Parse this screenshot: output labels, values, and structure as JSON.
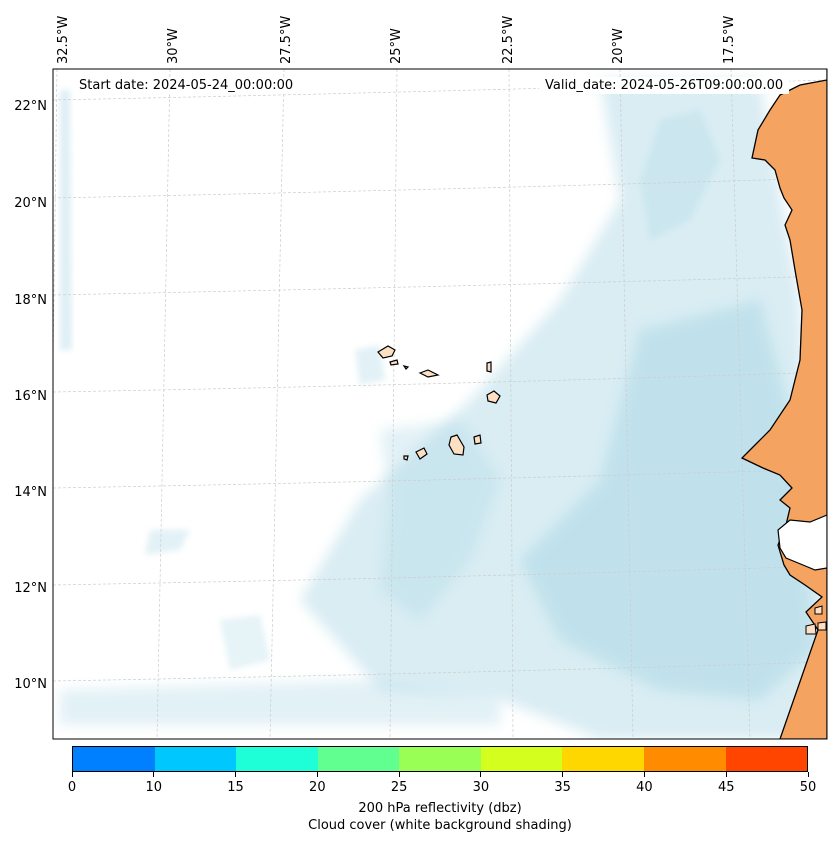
{
  "map": {
    "lon_labels": [
      "32.5°W",
      "30°W",
      "27.5°W",
      "25°W",
      "22.5°W",
      "20°W",
      "17.5°W"
    ],
    "lat_labels": [
      "22°N",
      "20°N",
      "18°N",
      "16°N",
      "14°N",
      "12°N",
      "10°N"
    ],
    "start_label": "Start date: 2024-05-24_00:00:00",
    "valid_label": "Valid_date: 2024-05-26T09:00:00.00",
    "colors": {
      "land": "#f4a460",
      "island": "#fde0c4",
      "cloud": "#add8e6",
      "coast": "#000000",
      "grid": "#cccccc"
    }
  },
  "colorbar": {
    "colors": [
      "#0080ff",
      "#00c8ff",
      "#1effd8",
      "#60ff90",
      "#99ff55",
      "#d4ff1e",
      "#ffd700",
      "#ff8c00",
      "#ff4500"
    ],
    "tick_labels": [
      "0",
      "10",
      "15",
      "20",
      "25",
      "30",
      "35",
      "40",
      "45",
      "50"
    ],
    "title_line1": "200 hPa reflectivity (dbz)",
    "title_line2": "Cloud cover (white background shading)"
  }
}
